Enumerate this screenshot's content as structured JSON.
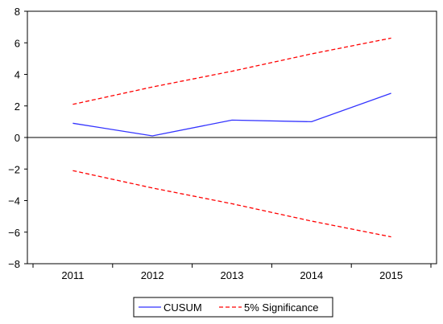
{
  "chart_data": {
    "type": "line",
    "x": [
      "2011",
      "2012",
      "2013",
      "2014",
      "2015"
    ],
    "series": [
      {
        "name": "CUSUM",
        "values": [
          0.9,
          0.1,
          1.1,
          1.0,
          2.8
        ],
        "color": "#3333ff",
        "style": "solid"
      },
      {
        "name": "5% Significance",
        "values": [
          2.1,
          3.2,
          4.2,
          5.3,
          6.3
        ],
        "color": "#ff0000",
        "style": "dashed"
      },
      {
        "name": "5% Significance",
        "values": [
          -2.1,
          -3.2,
          -4.2,
          -5.3,
          -6.3
        ],
        "color": "#ff0000",
        "style": "dashed",
        "in_legend": false
      }
    ],
    "ylim": [
      -8,
      8
    ],
    "yticks": [
      -8,
      -6,
      -4,
      -2,
      0,
      2,
      4,
      6,
      8
    ],
    "ytick_labels": [
      "−8",
      "−6",
      "−4",
      "−2",
      "0",
      "2",
      "4",
      "6",
      "8"
    ],
    "zero_line": true,
    "grid": false,
    "legend_position": "bottom-center",
    "title": "",
    "xlabel": "",
    "ylabel": ""
  }
}
